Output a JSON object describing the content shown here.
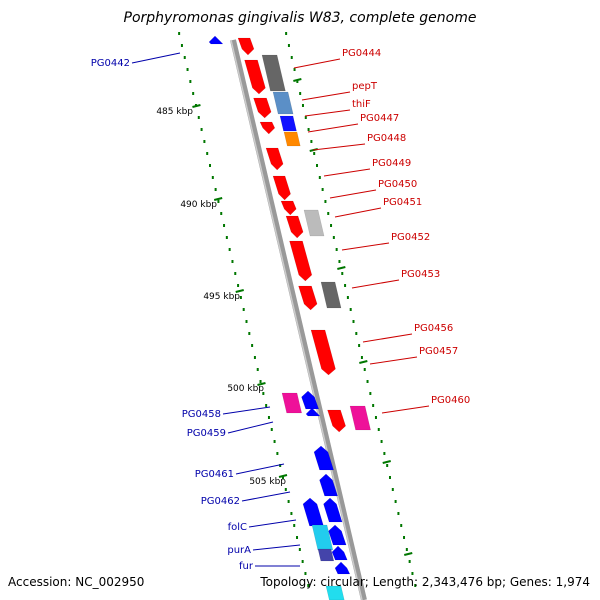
{
  "title": "Porphyromonas gingivalis W83, complete genome",
  "accession": "Accession: NC_002950",
  "summary": "Topology: circular; Length: 2,343,476 bp; Genes: 1,974",
  "colors": {
    "forward_gene": "#ff0000",
    "reverse_gene": "#0000ff",
    "forward_label": "#cc0000",
    "reverse_label": "#0000aa",
    "backbone": "#999999",
    "ruler": "#007700"
  },
  "scale_labels": [
    "485 kbp",
    "490 kbp",
    "495 kbp",
    "500 kbp",
    "505 kbp"
  ],
  "forward_genes": [
    "PG0444",
    "pepT",
    "thiF",
    "PG0447",
    "PG0448",
    "PG0449",
    "PG0450",
    "PG0451",
    "PG0452",
    "PG0453",
    "PG0456",
    "PG0457",
    "PG0460"
  ],
  "reverse_genes": [
    "PG0442",
    "PG0458",
    "PG0459",
    "PG0461",
    "PG0462",
    "folC",
    "purA",
    "fur"
  ]
}
